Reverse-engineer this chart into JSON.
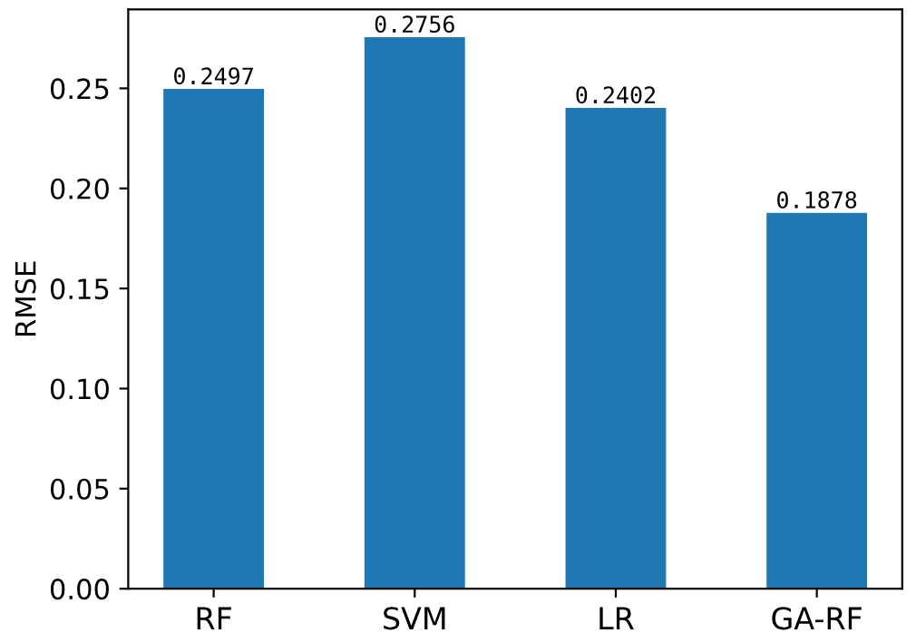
{
  "chart_data": {
    "type": "bar",
    "ylabel": "RMSE",
    "categories": [
      "RF",
      "SVM",
      "LR",
      "GA-RF"
    ],
    "values": [
      0.2497,
      0.2756,
      0.2402,
      0.1878
    ],
    "color": "#1f77b4",
    "ylim": [
      0,
      0.2894
    ],
    "yticks": [
      {
        "value": 0,
        "label": "0.00"
      },
      {
        "value": 0.05,
        "label": "0.05"
      },
      {
        "value": 0.1,
        "label": "0.10"
      },
      {
        "value": 0.15,
        "label": "0.15"
      },
      {
        "value": 0.2,
        "label": "0.20"
      },
      {
        "value": 0.25,
        "label": "0.25"
      }
    ],
    "data_labels": true
  }
}
